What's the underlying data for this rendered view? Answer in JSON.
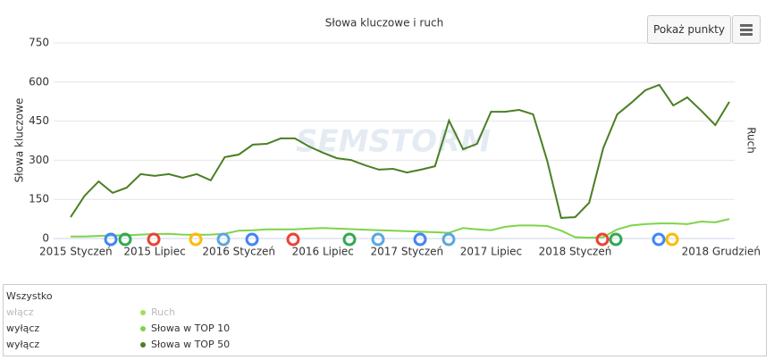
{
  "chart_data": {
    "type": "line",
    "title": "Słowa kluczowe i ruch",
    "y_label": "Słowa kluczowe",
    "y2_label": "Ruch",
    "watermark": "SEMSTORM",
    "x": [
      "2015 Styczeń",
      null,
      null,
      null,
      null,
      null,
      "2015 Lipiec",
      null,
      null,
      null,
      null,
      null,
      "2016 Styczeń",
      null,
      null,
      null,
      null,
      null,
      "2016 Lipiec",
      null,
      null,
      null,
      null,
      null,
      "2017 Styczeń",
      null,
      null,
      null,
      null,
      null,
      "2017 Lipiec",
      null,
      null,
      null,
      null,
      null,
      "2018 Styczeń",
      null,
      null,
      null,
      null,
      null,
      null,
      null,
      null,
      null,
      null,
      "2018 Grudzień"
    ],
    "ylim": [
      0,
      750
    ],
    "yticks": [
      0,
      150,
      300,
      450,
      600,
      750
    ],
    "grid": true,
    "series": [
      {
        "name": "Ruch",
        "color": "#9de05a",
        "visible": false,
        "values": [
          null,
          null,
          null,
          null,
          null,
          null,
          null,
          null,
          null,
          null,
          null,
          null,
          null,
          null,
          null,
          null,
          null,
          null,
          null,
          null,
          null,
          null,
          null,
          null,
          null,
          null,
          null,
          null,
          null,
          null,
          null,
          null,
          null,
          null,
          null,
          null,
          null,
          null,
          null,
          null,
          null,
          null,
          null,
          null,
          null,
          null,
          null,
          null
        ]
      },
      {
        "name": "Słowa w TOP 10",
        "color": "#7ed44a",
        "visible": true,
        "values": [
          8,
          8,
          10,
          12,
          12,
          15,
          17,
          18,
          15,
          14,
          15,
          18,
          30,
          32,
          35,
          35,
          35,
          38,
          40,
          38,
          36,
          34,
          32,
          30,
          28,
          26,
          24,
          22,
          40,
          35,
          32,
          45,
          50,
          50,
          48,
          30,
          5,
          3,
          5,
          35,
          50,
          55,
          58,
          58,
          55,
          65,
          62,
          75
        ]
      },
      {
        "name": "Słowa w TOP 50",
        "color": "#4a7f23",
        "visible": true,
        "values": [
          82,
          164,
          219,
          175,
          195,
          247,
          240,
          247,
          233,
          247,
          223,
          312,
          322,
          360,
          363,
          384,
          384,
          353,
          329,
          308,
          301,
          281,
          264,
          267,
          253,
          264,
          277,
          452,
          342,
          363,
          486,
          486,
          493,
          476,
          300,
          79,
          82,
          137,
          346,
          476,
          520,
          568,
          589,
          510,
          541,
          490,
          435,
          524
        ]
      }
    ],
    "toggle_all": "Wszystko",
    "toggles": [
      "włącz",
      "wyłącz",
      "wyłącz"
    ],
    "button": "Pokaż punkty"
  }
}
